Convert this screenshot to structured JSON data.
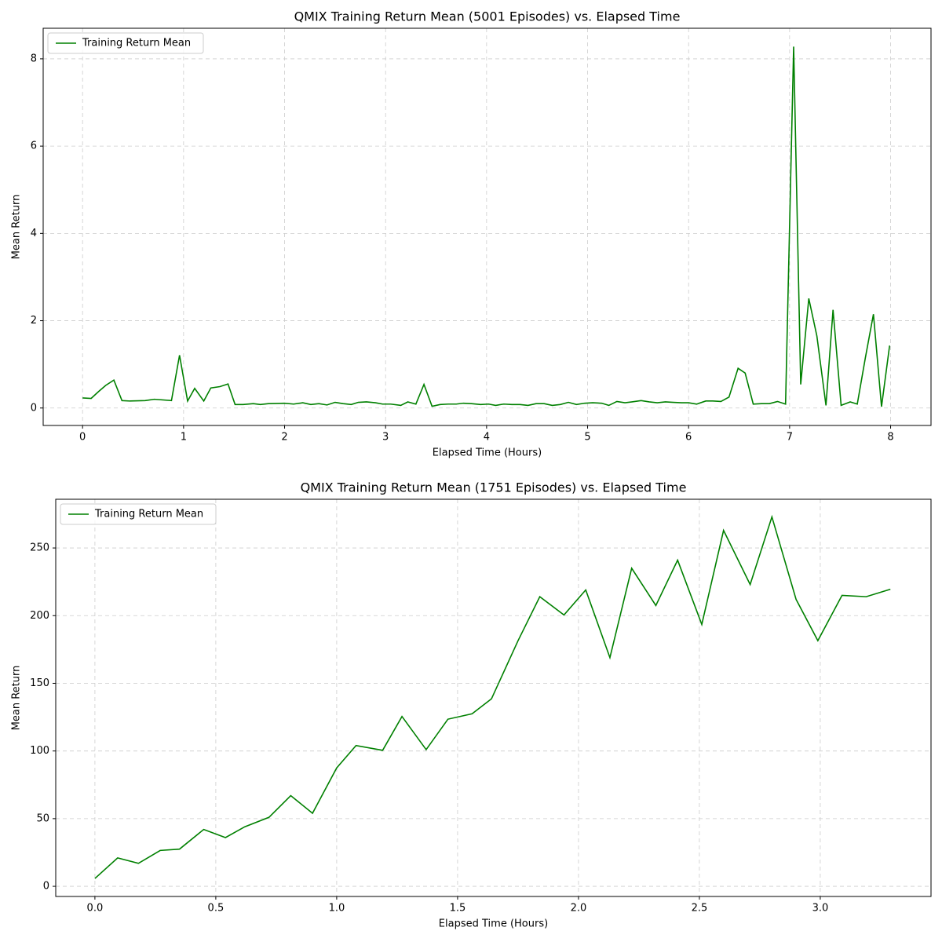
{
  "chart_data": [
    {
      "type": "line",
      "title": "QMIX Training Return Mean (5001 Episodes) vs. Elapsed Time",
      "xlabel": "Elapsed Time (Hours)",
      "ylabel": "Mean Return",
      "grid": true,
      "legend": "upper left",
      "xlim": [
        -0.39,
        8.4
      ],
      "ylim": [
        -0.4,
        8.7
      ],
      "xticks": [
        0,
        1,
        2,
        3,
        4,
        5,
        6,
        7,
        8
      ],
      "yticks": [
        0,
        2,
        4,
        6,
        8
      ],
      "x": [
        0,
        0.085,
        0.16,
        0.23,
        0.31,
        0.39,
        0.47,
        0.62,
        0.71,
        0.88,
        0.96,
        1.04,
        1.11,
        1.2,
        1.27,
        1.36,
        1.44,
        1.51,
        1.59,
        1.69,
        1.76,
        1.84,
        2.0,
        2.09,
        2.18,
        2.26,
        2.34,
        2.42,
        2.5,
        2.58,
        2.66,
        2.73,
        2.81,
        2.9,
        2.97,
        3.05,
        3.15,
        3.22,
        3.3,
        3.38,
        3.46,
        3.54,
        3.62,
        3.7,
        3.77,
        3.85,
        3.94,
        4.02,
        4.09,
        4.17,
        4.25,
        4.33,
        4.41,
        4.49,
        4.57,
        4.65,
        4.73,
        4.81,
        4.89,
        4.97,
        5.05,
        5.14,
        5.21,
        5.29,
        5.37,
        5.44,
        5.53,
        5.61,
        5.69,
        5.77,
        5.85,
        5.93,
        6.0,
        6.08,
        6.17,
        6.24,
        6.32,
        6.4,
        6.49,
        6.56,
        6.64,
        6.72,
        6.8,
        6.88,
        6.96,
        7.04,
        7.11,
        7.19,
        7.27,
        7.36,
        7.43,
        7.51,
        7.6,
        7.67,
        7.75,
        7.83,
        7.91,
        7.99
      ],
      "series": [
        {
          "name": "Training Return Mean",
          "color": "#008000",
          "values": [
            0.23,
            0.22,
            0.38,
            0.52,
            0.64,
            0.17,
            0.16,
            0.17,
            0.2,
            0.17,
            1.21,
            0.16,
            0.45,
            0.16,
            0.46,
            0.49,
            0.55,
            0.08,
            0.08,
            0.1,
            0.08,
            0.1,
            0.11,
            0.09,
            0.12,
            0.08,
            0.1,
            0.07,
            0.13,
            0.1,
            0.08,
            0.13,
            0.14,
            0.12,
            0.09,
            0.09,
            0.06,
            0.14,
            0.09,
            0.54,
            0.04,
            0.08,
            0.09,
            0.09,
            0.11,
            0.1,
            0.08,
            0.09,
            0.06,
            0.09,
            0.08,
            0.08,
            0.06,
            0.1,
            0.1,
            0.06,
            0.08,
            0.13,
            0.08,
            0.11,
            0.12,
            0.11,
            0.06,
            0.15,
            0.12,
            0.14,
            0.17,
            0.14,
            0.12,
            0.14,
            0.13,
            0.12,
            0.12,
            0.09,
            0.16,
            0.16,
            0.15,
            0.25,
            0.91,
            0.8,
            0.09,
            0.1,
            0.1,
            0.15,
            0.09,
            8.28,
            0.54,
            2.51,
            1.65,
            0.06,
            2.25,
            0.06,
            0.14,
            0.09,
            1.15,
            2.15,
            0.03,
            1.43
          ]
        }
      ]
    },
    {
      "type": "line",
      "title": "QMIX Training Return Mean (1751 Episodes) vs. Elapsed Time",
      "xlabel": "Elapsed Time (Hours)",
      "ylabel": "Mean Return",
      "grid": true,
      "legend": "upper left",
      "xlim": [
        -0.162,
        3.458
      ],
      "ylim": [
        -7.5,
        286
      ],
      "xticks": [
        {
          "value": 0,
          "label": "0.0"
        },
        0.5,
        {
          "value": 1,
          "label": "1.0"
        },
        1.5,
        {
          "value": 2,
          "label": "2.0"
        },
        2.5,
        {
          "value": 3,
          "label": "3.0"
        }
      ],
      "yticks": [
        0,
        50,
        100,
        150,
        200,
        250
      ],
      "x": [
        0,
        0.094,
        0.18,
        0.27,
        0.35,
        0.45,
        0.54,
        0.62,
        0.72,
        0.81,
        0.9,
        1.0,
        1.08,
        1.19,
        1.27,
        1.37,
        1.46,
        1.56,
        1.64,
        1.75,
        1.84,
        1.94,
        2.03,
        2.13,
        2.22,
        2.32,
        2.41,
        2.51,
        2.6,
        2.71,
        2.8,
        2.9,
        2.99,
        3.09,
        3.19,
        3.29
      ],
      "series": [
        {
          "name": "Training Return Mean",
          "color": "#008000",
          "values": [
            5.8,
            21,
            17,
            26.5,
            27.5,
            42,
            36,
            44,
            51,
            67,
            54,
            87.5,
            104,
            100.5,
            125.5,
            101,
            123.5,
            127.5,
            138.5,
            181.5,
            214,
            200.5,
            219,
            169,
            235,
            207.5,
            241,
            193.5,
            263,
            223,
            273,
            212,
            181.5,
            215,
            214,
            219.5
          ]
        }
      ]
    }
  ]
}
